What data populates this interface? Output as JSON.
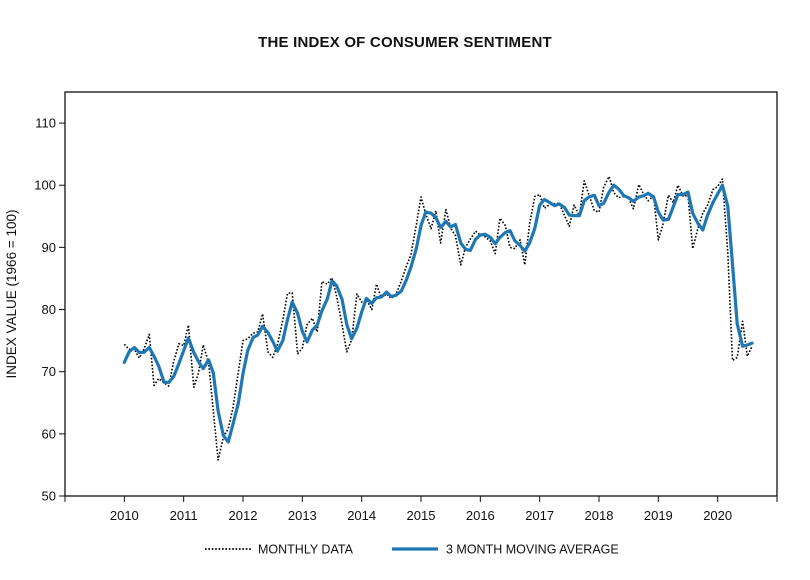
{
  "chart_data": {
    "type": "line",
    "title": "THE INDEX OF CONSUMER SENTIMENT",
    "ylabel": "INDEX VALUE (1966 = 100)",
    "xlabel": "",
    "ylim": [
      50,
      115
    ],
    "yticks": [
      50,
      60,
      70,
      80,
      90,
      100,
      110
    ],
    "xlim": [
      2009,
      2021
    ],
    "xticks": [
      2010,
      2011,
      2012,
      2013,
      2014,
      2015,
      2016,
      2017,
      2018,
      2019,
      2020
    ],
    "grid": false,
    "legend": "bottom",
    "series": [
      {
        "name": "MONTHLY DATA",
        "style": "dotted",
        "color": "#000000",
        "x": [
          2010.0,
          2010.08,
          2010.17,
          2010.25,
          2010.33,
          2010.42,
          2010.5,
          2010.58,
          2010.67,
          2010.75,
          2010.83,
          2010.92,
          2011.0,
          2011.08,
          2011.17,
          2011.25,
          2011.33,
          2011.42,
          2011.5,
          2011.58,
          2011.67,
          2011.75,
          2011.83,
          2011.92,
          2012.0,
          2012.08,
          2012.17,
          2012.25,
          2012.33,
          2012.42,
          2012.5,
          2012.58,
          2012.67,
          2012.75,
          2012.83,
          2012.92,
          2013.0,
          2013.08,
          2013.17,
          2013.25,
          2013.33,
          2013.42,
          2013.5,
          2013.58,
          2013.67,
          2013.75,
          2013.83,
          2013.92,
          2014.0,
          2014.08,
          2014.17,
          2014.25,
          2014.33,
          2014.42,
          2014.5,
          2014.58,
          2014.67,
          2014.75,
          2014.83,
          2014.92,
          2015.0,
          2015.08,
          2015.17,
          2015.25,
          2015.33,
          2015.42,
          2015.5,
          2015.58,
          2015.67,
          2015.75,
          2015.83,
          2015.92,
          2016.0,
          2016.08,
          2016.17,
          2016.25,
          2016.33,
          2016.42,
          2016.5,
          2016.58,
          2016.67,
          2016.75,
          2016.83,
          2016.92,
          2017.0,
          2017.08,
          2017.17,
          2017.25,
          2017.33,
          2017.42,
          2017.5,
          2017.58,
          2017.67,
          2017.75,
          2017.83,
          2017.92,
          2018.0,
          2018.08,
          2018.17,
          2018.25,
          2018.33,
          2018.42,
          2018.5,
          2018.58,
          2018.67,
          2018.75,
          2018.83,
          2018.92,
          2019.0,
          2019.08,
          2019.17,
          2019.25,
          2019.33,
          2019.42,
          2019.5,
          2019.58,
          2019.67,
          2019.75,
          2019.83,
          2019.92,
          2020.0,
          2020.08,
          2020.17,
          2020.25,
          2020.33,
          2020.42,
          2020.5,
          2020.58
        ],
        "values": [
          74.4,
          73.6,
          73.6,
          72.2,
          73.6,
          76.0,
          67.8,
          68.9,
          68.2,
          67.7,
          71.6,
          74.5,
          74.2,
          77.5,
          67.5,
          69.8,
          74.3,
          71.5,
          63.7,
          55.8,
          59.5,
          60.8,
          64.1,
          69.9,
          75.0,
          75.3,
          76.2,
          76.4,
          79.3,
          73.2,
          72.3,
          74.3,
          78.3,
          82.6,
          82.7,
          72.9,
          73.8,
          77.6,
          78.6,
          76.4,
          84.5,
          84.1,
          85.1,
          82.1,
          77.5,
          73.2,
          75.1,
          82.5,
          81.2,
          81.6,
          80.0,
          84.1,
          81.9,
          82.5,
          81.8,
          82.5,
          84.6,
          86.9,
          88.8,
          93.6,
          98.1,
          95.4,
          93.0,
          95.9,
          90.7,
          96.1,
          93.1,
          91.9,
          87.2,
          90.0,
          91.3,
          92.6,
          92.0,
          91.7,
          91.0,
          89.0,
          94.7,
          93.5,
          90.0,
          89.8,
          91.2,
          87.2,
          93.8,
          98.2,
          98.5,
          96.3,
          96.9,
          97.0,
          97.1,
          95.1,
          93.4,
          96.8,
          95.1,
          100.7,
          98.5,
          95.9,
          95.7,
          99.7,
          101.4,
          98.8,
          98.0,
          98.2,
          97.9,
          96.2,
          100.1,
          98.6,
          97.5,
          98.3,
          91.2,
          93.8,
          98.4,
          97.2,
          100.0,
          98.2,
          98.4,
          89.8,
          93.2,
          95.5,
          96.8,
          99.3,
          99.8,
          101.0,
          89.1,
          71.8,
          72.3,
          78.1,
          72.5,
          74.1
        ]
      },
      {
        "name": "3 MONTH MOVING AVERAGE",
        "style": "solid",
        "color": "#1f77b4",
        "x": [
          2010.0,
          2010.08,
          2010.17,
          2010.25,
          2010.33,
          2010.42,
          2010.5,
          2010.58,
          2010.67,
          2010.75,
          2010.83,
          2010.92,
          2011.0,
          2011.08,
          2011.17,
          2011.25,
          2011.33,
          2011.42,
          2011.5,
          2011.58,
          2011.67,
          2011.75,
          2011.83,
          2011.92,
          2012.0,
          2012.08,
          2012.17,
          2012.25,
          2012.33,
          2012.42,
          2012.5,
          2012.58,
          2012.67,
          2012.75,
          2012.83,
          2012.92,
          2013.0,
          2013.08,
          2013.17,
          2013.25,
          2013.33,
          2013.42,
          2013.5,
          2013.58,
          2013.67,
          2013.75,
          2013.83,
          2013.92,
          2014.0,
          2014.08,
          2014.17,
          2014.25,
          2014.33,
          2014.42,
          2014.5,
          2014.58,
          2014.67,
          2014.75,
          2014.83,
          2014.92,
          2015.0,
          2015.08,
          2015.17,
          2015.25,
          2015.33,
          2015.42,
          2015.5,
          2015.58,
          2015.67,
          2015.75,
          2015.83,
          2015.92,
          2016.0,
          2016.08,
          2016.17,
          2016.25,
          2016.33,
          2016.42,
          2016.5,
          2016.58,
          2016.67,
          2016.75,
          2016.83,
          2016.92,
          2017.0,
          2017.08,
          2017.17,
          2017.25,
          2017.33,
          2017.42,
          2017.5,
          2017.58,
          2017.67,
          2017.75,
          2017.83,
          2017.92,
          2018.0,
          2018.08,
          2018.17,
          2018.25,
          2018.33,
          2018.42,
          2018.5,
          2018.58,
          2018.67,
          2018.75,
          2018.83,
          2018.92,
          2019.0,
          2019.08,
          2019.17,
          2019.25,
          2019.33,
          2019.42,
          2019.5,
          2019.58,
          2019.67,
          2019.75,
          2019.83,
          2019.92,
          2020.0,
          2020.08,
          2020.17,
          2020.25,
          2020.33,
          2020.42,
          2020.5,
          2020.58
        ],
        "values": [
          71.5,
          73.2,
          73.9,
          73.1,
          73.1,
          73.9,
          72.5,
          70.9,
          68.3,
          68.3,
          69.2,
          71.3,
          73.4,
          75.4,
          73.1,
          71.6,
          70.5,
          71.9,
          69.8,
          63.7,
          59.7,
          58.7,
          61.5,
          64.9,
          69.7,
          73.4,
          75.5,
          75.9,
          77.3,
          76.3,
          74.9,
          73.3,
          75.0,
          78.4,
          81.2,
          79.4,
          76.5,
          74.8,
          76.7,
          77.5,
          79.8,
          81.7,
          84.6,
          83.8,
          81.6,
          77.6,
          75.3,
          77.0,
          79.6,
          81.8,
          81.0,
          81.9,
          82.0,
          82.8,
          82.1,
          82.3,
          83.0,
          84.7,
          86.8,
          89.8,
          93.5,
          95.7,
          95.5,
          94.8,
          93.2,
          94.2,
          93.3,
          93.7,
          90.7,
          89.7,
          89.5,
          91.3,
          92.0,
          92.1,
          91.6,
          90.6,
          91.6,
          92.4,
          92.7,
          91.1,
          90.3,
          89.4,
          90.7,
          93.1,
          96.8,
          97.7,
          97.2,
          96.7,
          97.0,
          96.4,
          95.2,
          95.1,
          95.1,
          97.5,
          98.1,
          98.4,
          96.7,
          97.1,
          98.9,
          100.0,
          99.4,
          98.3,
          98.0,
          97.4,
          98.1,
          98.3,
          98.7,
          98.1,
          95.7,
          94.4,
          94.5,
          96.5,
          98.5,
          98.5,
          98.9,
          95.5,
          93.8,
          92.8,
          95.2,
          97.2,
          98.6,
          100.0,
          96.6,
          87.3,
          77.7,
          74.1,
          74.3,
          74.6
        ]
      }
    ]
  }
}
